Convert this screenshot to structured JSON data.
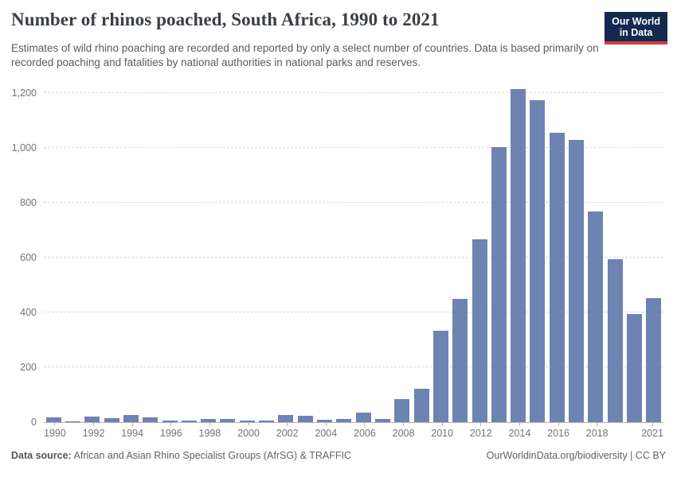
{
  "header": {
    "title": "Number of rhinos poached, South Africa, 1990 to 2021",
    "subtitle": "Estimates of wild rhino poaching are recorded and reported by only a select number of countries. Data is based primarily on recorded poaching and fatalities by national authorities in national parks and reserves.",
    "logo_line1": "Our World",
    "logo_line2": "in Data"
  },
  "chart_data": {
    "type": "bar",
    "title": "Number of rhinos poached, South Africa, 1990 to 2021",
    "xlabel": "",
    "ylabel": "",
    "ylim": [
      0,
      1200
    ],
    "ytick_interval": 200,
    "ytick_labels": [
      "0",
      "200",
      "400",
      "600",
      "800",
      "1,000",
      "1,200"
    ],
    "xtick_labels": [
      "1990",
      "1992",
      "1994",
      "1996",
      "1998",
      "2000",
      "2002",
      "2004",
      "2006",
      "2008",
      "2010",
      "2012",
      "2014",
      "2016",
      "2018",
      "2021"
    ],
    "grid": "horizontal-dashed",
    "legend": "none",
    "categories": [
      1990,
      1991,
      1992,
      1993,
      1994,
      1995,
      1996,
      1997,
      1998,
      1999,
      2000,
      2001,
      2002,
      2003,
      2004,
      2005,
      2006,
      2007,
      2008,
      2009,
      2010,
      2011,
      2012,
      2013,
      2014,
      2015,
      2016,
      2017,
      2018,
      2019,
      2020,
      2021
    ],
    "values": [
      16,
      4,
      21,
      14,
      27,
      18,
      6,
      6,
      12,
      11,
      7,
      6,
      25,
      22,
      10,
      13,
      36,
      13,
      83,
      122,
      333,
      448,
      668,
      1004,
      1215,
      1175,
      1054,
      1028,
      769,
      594,
      394,
      451
    ]
  },
  "footer": {
    "datasource_label": "Data source:",
    "datasource_text": " African and Asian Rhino Specialist Groups (AfrSG) & TRAFFIC",
    "link": "OurWorldinData.org/biodiversity",
    "separator": " | ",
    "license": "CC BY"
  },
  "colors": {
    "bar": "#6d84b2",
    "grid": "#d9d9d9",
    "axis": "#b3b3b3",
    "axis_label": "#737373",
    "title": "#3a3f44",
    "subtitle": "#5b5b5b",
    "footer": "#616161",
    "logo_bg": "#13294e",
    "logo_stripe": "#cf3e41"
  }
}
